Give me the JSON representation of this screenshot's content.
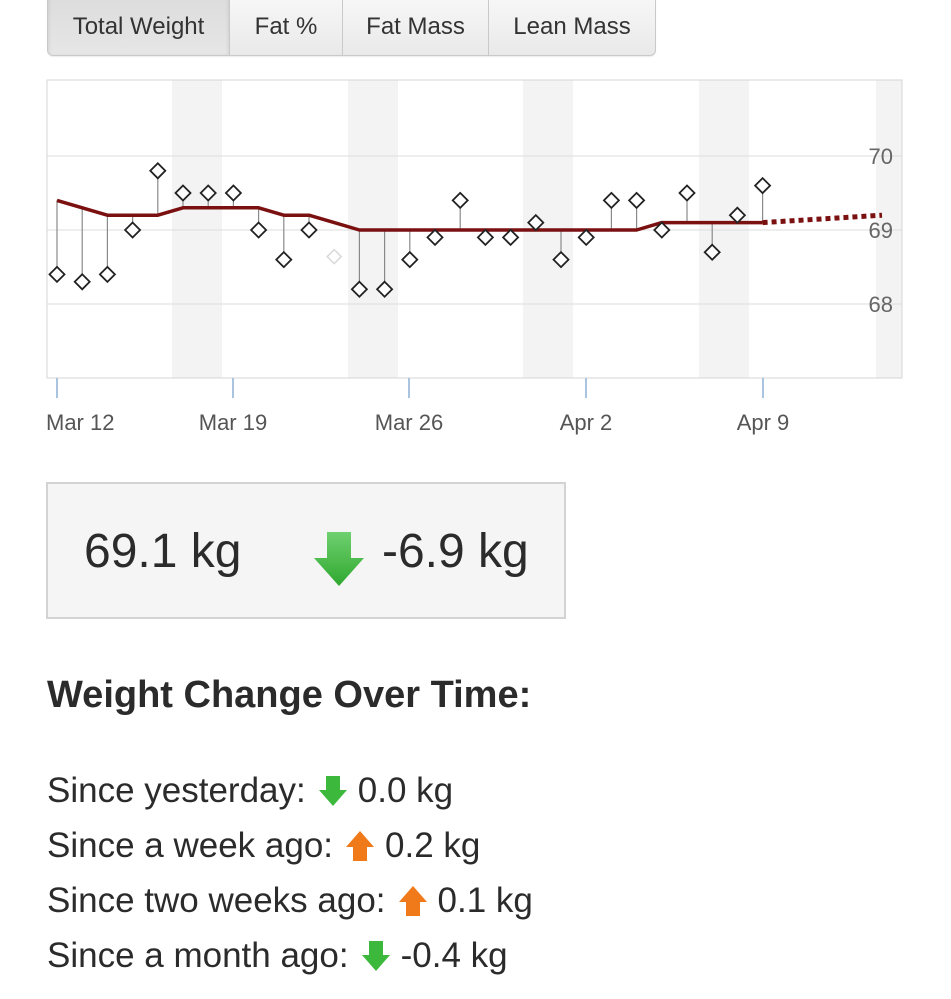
{
  "tabs": [
    "Total Weight",
    "Fat %",
    "Fat Mass",
    "Lean Mass"
  ],
  "active_tab": "Total Weight",
  "colors": {
    "trend": "#7b1010",
    "up_arrow": "#f07a1a",
    "down_arrow": "#3cb83c"
  },
  "chart_data": {
    "type": "line",
    "title": "",
    "xlabel": "",
    "ylabel": "",
    "x_ticks": [
      "Mar 12",
      "Mar 19",
      "Mar 26",
      "Apr 2",
      "Apr 9"
    ],
    "y_ticks": [
      "68",
      "69",
      "70"
    ],
    "ylim": [
      67,
      71
    ],
    "grid": true,
    "series": [
      {
        "values": [
          68.4,
          68.3,
          68.4,
          69.0,
          69.8,
          69.5,
          69.5,
          69.5,
          69.0,
          68.6,
          69.0,
          null,
          68.2,
          68.2,
          68.6,
          68.9,
          69.4,
          68.9,
          68.9,
          69.1,
          68.6,
          68.9,
          69.4,
          69.4,
          69.0,
          69.5,
          68.7,
          69.2,
          69.6
        ]
      },
      {
        "values": [
          69.4,
          69.3,
          69.2,
          69.2,
          69.2,
          69.3,
          69.3,
          69.3,
          69.3,
          69.2,
          69.2,
          69.1,
          69.0,
          69.0,
          69.0,
          69.0,
          69.0,
          69.0,
          69.0,
          69.0,
          69.0,
          69.0,
          69.0,
          69.0,
          69.1,
          69.1,
          69.1,
          69.1,
          69.1
        ]
      }
    ],
    "projection_end": 69.2
  },
  "summary": {
    "current": "69.1 kg",
    "change": "-6.9 kg"
  },
  "section_title": "Weight Change Over Time:",
  "changes": [
    {
      "label": "Since yesterday:",
      "value": "0.0 kg",
      "direction": "down"
    },
    {
      "label": "Since a week ago:",
      "value": "0.2 kg",
      "direction": "up"
    },
    {
      "label": "Since two weeks ago:",
      "value": "0.1 kg",
      "direction": "up"
    },
    {
      "label": "Since a month ago:",
      "value": "-0.4 kg",
      "direction": "down"
    }
  ]
}
